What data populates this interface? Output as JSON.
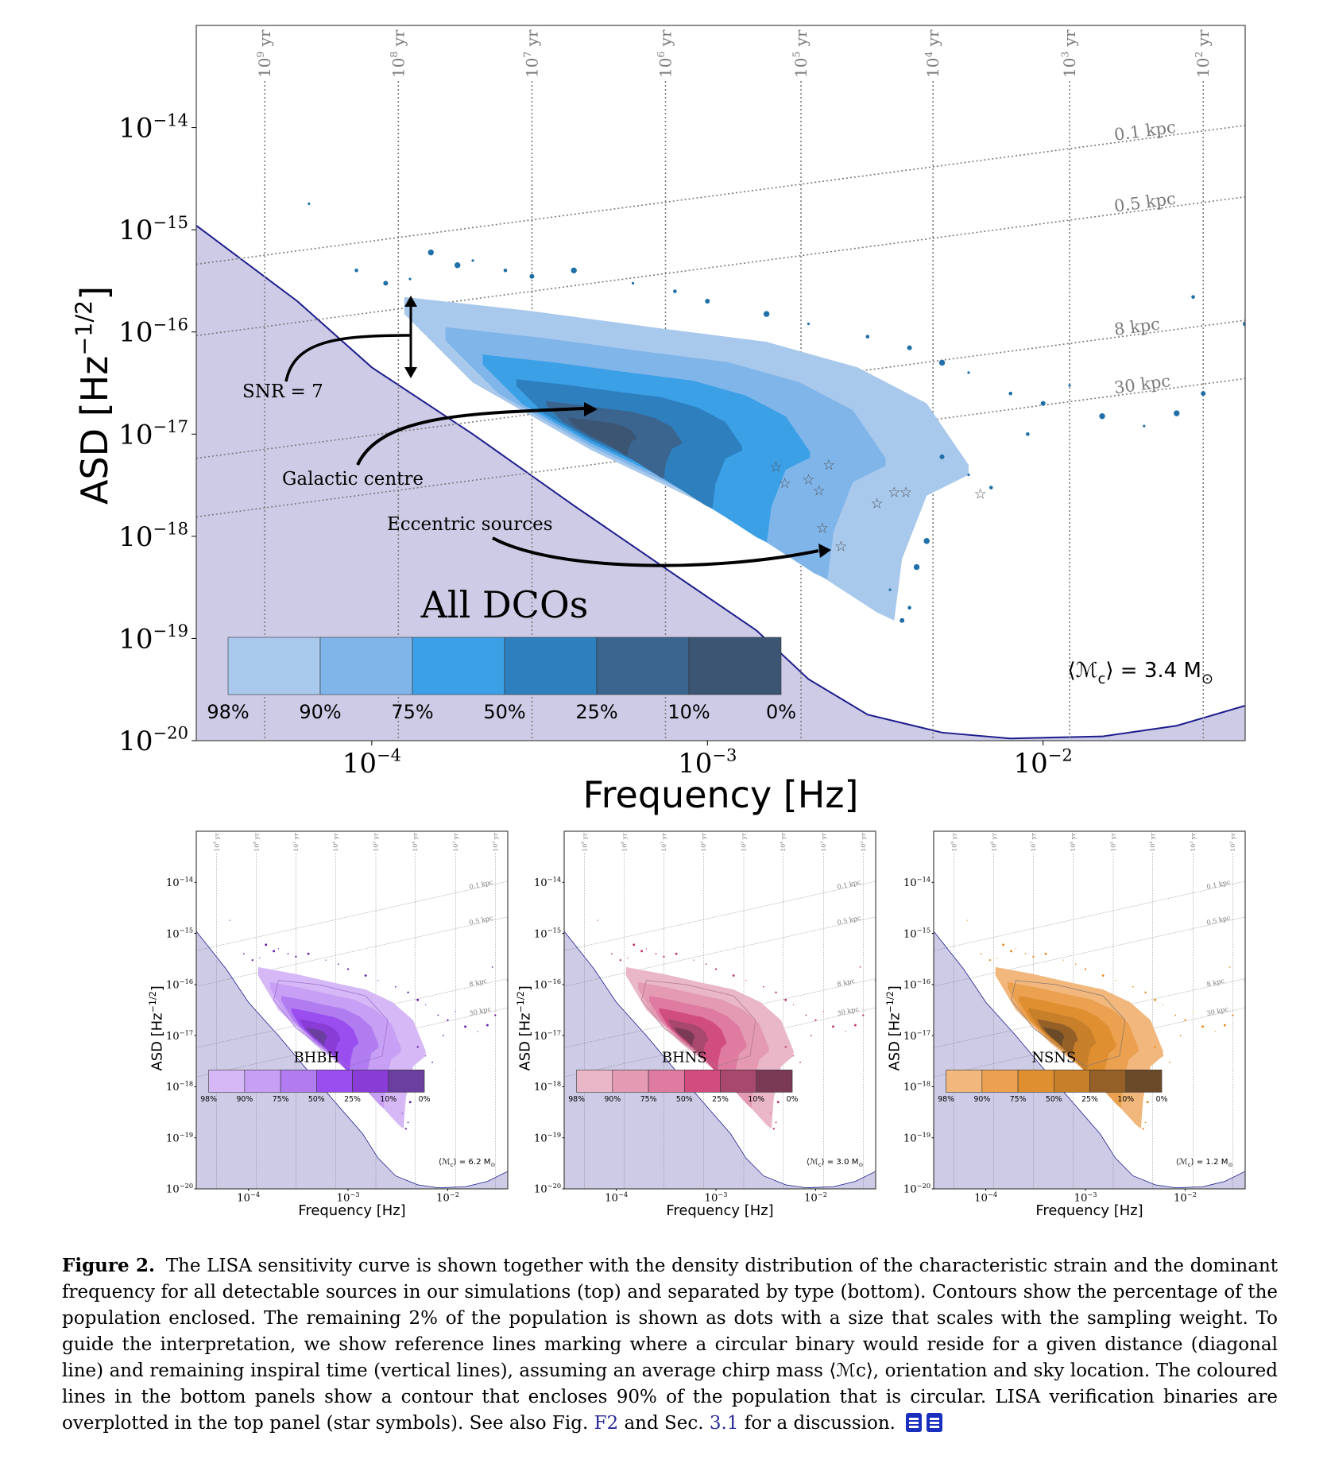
{
  "chart_data": [
    {
      "type": "scatter",
      "panel": "top",
      "title": "All DCOs",
      "xlabel": "Frequency [Hz]",
      "ylabel": "ASD [Hz⁻¹ᐟ²]",
      "ylabel_parts": {
        "base": "ASD [Hz",
        "exp": "−1/2",
        "close": "]"
      },
      "xscale": "log",
      "yscale": "log",
      "xlim": [
        3e-05,
        0.04
      ],
      "ylim": [
        1e-20,
        1e-13
      ],
      "xticks": [
        {
          "value": 0.0001,
          "exp": "−4"
        },
        {
          "value": 0.001,
          "exp": "−3"
        },
        {
          "value": 0.01,
          "exp": "−2"
        }
      ],
      "yticks": [
        {
          "value": 1e-14,
          "exp": "−14"
        },
        {
          "value": 1e-15,
          "exp": "−15"
        },
        {
          "value": 1e-16,
          "exp": "−16"
        },
        {
          "value": 1e-17,
          "exp": "−17"
        },
        {
          "value": 1e-18,
          "exp": "−18"
        },
        {
          "value": 1e-19,
          "exp": "−19"
        },
        {
          "value": 1e-20,
          "exp": "−20"
        }
      ],
      "sensitivity_curve": [
        [
          3e-05,
          1.1e-15
        ],
        [
          6e-05,
          2e-16
        ],
        [
          0.0001,
          4.5e-17
        ],
        [
          0.0002,
          1e-17
        ],
        [
          0.0004,
          2e-18
        ],
        [
          0.0008,
          4.2e-19
        ],
        [
          0.0014,
          1.2e-19
        ],
        [
          0.002,
          4e-20
        ],
        [
          0.003,
          1.8e-20
        ],
        [
          0.005,
          1.2e-20
        ],
        [
          0.008,
          1.05e-20
        ],
        [
          0.015,
          1.1e-20
        ],
        [
          0.025,
          1.4e-20
        ],
        [
          0.04,
          2.2e-20
        ]
      ],
      "lifetime_lines": [
        {
          "label_base": "10",
          "label_exp": "9",
          "label_unit": "yr",
          "x": 4.8e-05
        },
        {
          "label_base": "10",
          "label_exp": "8",
          "label_unit": "yr",
          "x": 0.00012
        },
        {
          "label_base": "10",
          "label_exp": "7",
          "label_unit": "yr",
          "x": 0.0003
        },
        {
          "label_base": "10",
          "label_exp": "6",
          "label_unit": "yr",
          "x": 0.00075
        },
        {
          "label_base": "10",
          "label_exp": "5",
          "label_unit": "yr",
          "x": 0.0019
        },
        {
          "label_base": "10",
          "label_exp": "4",
          "label_unit": "yr",
          "x": 0.0047
        },
        {
          "label_base": "10",
          "label_exp": "3",
          "label_unit": "yr",
          "x": 0.012
        },
        {
          "label_base": "10",
          "label_exp": "2",
          "label_unit": "yr",
          "x": 0.03
        }
      ],
      "distance_lines": [
        {
          "label": "0.1 kpc",
          "x0": 3e-05,
          "y0": 4.6e-16,
          "x1": 0.04,
          "y1": 1.05e-14
        },
        {
          "label": "0.5 kpc",
          "x0": 3e-05,
          "y0": 9.2e-17,
          "x1": 0.04,
          "y1": 2.1e-15
        },
        {
          "label": "8 kpc",
          "x0": 3e-05,
          "y0": 5.8e-18,
          "x1": 0.04,
          "y1": 1.3e-16
        },
        {
          "label": "30 kpc",
          "x0": 3e-05,
          "y0": 1.55e-18,
          "x1": 0.04,
          "y1": 3.5e-17
        }
      ],
      "density_levels": [
        {
          "label": "98%",
          "color": "#a8c8ec"
        },
        {
          "label": "90%",
          "color": "#80b5ea"
        },
        {
          "label": "75%",
          "color": "#3ba0e6"
        },
        {
          "label": "50%",
          "color": "#2e7fbd"
        },
        {
          "label": "25%",
          "color": "#3b648f"
        },
        {
          "label": "10%",
          "color": "#3b5573"
        },
        {
          "label": "0%",
          "color": ""
        }
      ],
      "verification_binaries": [
        [
          0.0016,
          4.8e-18
        ],
        [
          0.0017,
          3.3e-18
        ],
        [
          0.002,
          3.6e-18
        ],
        [
          0.00215,
          2.8e-18
        ],
        [
          0.0023,
          5e-18
        ],
        [
          0.0022,
          1.2e-18
        ],
        [
          0.0025,
          8e-19
        ],
        [
          0.0032,
          2.1e-18
        ],
        [
          0.0036,
          2.7e-18
        ],
        [
          0.0039,
          2.7e-18
        ],
        [
          0.0065,
          2.6e-18
        ]
      ],
      "sample_points": [
        [
          6.5e-05,
          1.8e-15
        ],
        [
          9e-05,
          4e-16
        ],
        [
          0.00011,
          3e-16
        ],
        [
          0.00015,
          6e-16
        ],
        [
          0.0002,
          5e-16
        ],
        [
          0.00025,
          4e-16
        ],
        [
          0.0003,
          3.5e-16
        ],
        [
          0.0004,
          4e-16
        ],
        [
          0.0006,
          3e-16
        ],
        [
          0.0008,
          2.5e-16
        ],
        [
          0.001,
          2e-16
        ],
        [
          0.0015,
          1.5e-16
        ],
        [
          0.002,
          1.2e-16
        ],
        [
          0.003,
          9e-17
        ],
        [
          0.004,
          7e-17
        ],
        [
          0.005,
          5e-17
        ],
        [
          0.006,
          4e-17
        ],
        [
          0.008,
          2.5e-17
        ],
        [
          0.01,
          2e-17
        ],
        [
          0.015,
          1.5e-17
        ],
        [
          0.02,
          1.2e-17
        ],
        [
          0.028,
          2.2e-16
        ],
        [
          0.04,
          1.2e-16
        ],
        [
          0.025,
          1.6e-17
        ],
        [
          0.006,
          4e-18
        ],
        [
          0.007,
          3e-18
        ],
        [
          0.005,
          6e-18
        ],
        [
          0.0042,
          5e-19
        ],
        [
          0.0035,
          3e-19
        ],
        [
          0.004,
          2e-19
        ],
        [
          0.0038,
          1.5e-19
        ],
        [
          0.0045,
          9e-19
        ],
        [
          0.012,
          3e-17
        ],
        [
          0.009,
          1e-17
        ],
        [
          0.03,
          2.5e-17
        ],
        [
          0.00018,
          4.5e-16
        ],
        [
          0.00013,
          3.3e-16
        ]
      ],
      "annotations": [
        {
          "text": "SNR = 7"
        },
        {
          "text": "Galactic centre"
        },
        {
          "text": "Eccentric sources"
        }
      ],
      "mean_chirp_mass": {
        "prefix": "⟨",
        "symbol": "ℳ",
        "sub": "c",
        "suffix": "⟩ = 3.4 M",
        "sun": "⊙"
      },
      "grid": false,
      "legend": "bottom-left colorbar"
    },
    {
      "type": "scatter",
      "panel": "bottom-left",
      "title": "BHBH",
      "xlabel": "Frequency [Hz]",
      "ylabel": "ASD [Hz⁻¹ᐟ²]",
      "ylabel_parts": {
        "base": "ASD [Hz",
        "exp": "−1/2",
        "close": "]"
      },
      "xscale": "log",
      "yscale": "log",
      "xlim": [
        3e-05,
        0.04
      ],
      "ylim": [
        1e-20,
        1e-13
      ],
      "mean_chirp_mass": {
        "prefix": "⟨",
        "symbol": "ℳ",
        "sub": "c",
        "suffix": "⟩ = 6.2 M",
        "sun": "⊙"
      },
      "density_levels": [
        {
          "label": "98%",
          "color": "#d5b8f5"
        },
        {
          "label": "90%",
          "color": "#c79ff5"
        },
        {
          "label": "75%",
          "color": "#b07cf0"
        },
        {
          "label": "50%",
          "color": "#9a4ef0"
        },
        {
          "label": "25%",
          "color": "#8a3dd6"
        },
        {
          "label": "10%",
          "color": "#6b3fa0"
        },
        {
          "label": "0%",
          "color": ""
        }
      ],
      "point_color": "#6a1fb0",
      "circular_contour_color": "#a070d0"
    },
    {
      "type": "scatter",
      "panel": "bottom-middle",
      "title": "BHNS",
      "xlabel": "Frequency [Hz]",
      "ylabel": "ASD [Hz⁻¹ᐟ²]",
      "ylabel_parts": {
        "base": "ASD [Hz",
        "exp": "−1/2",
        "close": "]"
      },
      "xscale": "log",
      "yscale": "log",
      "xlim": [
        3e-05,
        0.04
      ],
      "ylim": [
        1e-20,
        1e-13
      ],
      "mean_chirp_mass": {
        "prefix": "⟨",
        "symbol": "ℳ",
        "sub": "c",
        "suffix": "⟩ = 3.0 M",
        "sun": "⊙"
      },
      "density_levels": [
        {
          "label": "98%",
          "color": "#eab7c8"
        },
        {
          "label": "90%",
          "color": "#e39ab2"
        },
        {
          "label": "75%",
          "color": "#df7aa0"
        },
        {
          "label": "50%",
          "color": "#d14d80"
        },
        {
          "label": "25%",
          "color": "#a8486c"
        },
        {
          "label": "10%",
          "color": "#7a3a55"
        },
        {
          "label": "0%",
          "color": ""
        }
      ],
      "point_color": "#c0356b",
      "circular_contour_color": "#b07a8a"
    },
    {
      "type": "scatter",
      "panel": "bottom-right",
      "title": "NSNS",
      "xlabel": "Frequency [Hz]",
      "ylabel": "ASD [Hz⁻¹ᐟ²]",
      "ylabel_parts": {
        "base": "ASD [Hz",
        "exp": "−1/2",
        "close": "]"
      },
      "xscale": "log",
      "yscale": "log",
      "xlim": [
        3e-05,
        0.04
      ],
      "ylim": [
        1e-20,
        1e-13
      ],
      "mean_chirp_mass": {
        "prefix": "⟨",
        "symbol": "ℳ",
        "sub": "c",
        "suffix": "⟩ = 1.2 M",
        "sun": "⊙"
      },
      "density_levels": [
        {
          "label": "98%",
          "color": "#f1b77c"
        },
        {
          "label": "90%",
          "color": "#eba14f"
        },
        {
          "label": "75%",
          "color": "#df8f30"
        },
        {
          "label": "50%",
          "color": "#c77f2a"
        },
        {
          "label": "25%",
          "color": "#946028"
        },
        {
          "label": "10%",
          "color": "#6b4a2a"
        },
        {
          "label": "0%",
          "color": ""
        }
      ],
      "point_color": "#e88a20",
      "circular_contour_color": "#8a7a70"
    }
  ],
  "styles": {
    "sensitivity_fill": "#cdcbe6",
    "sensitivity_line": "#1c1c8c",
    "point_color": "#1f6fa8",
    "reference_line": "#7a7a7a",
    "arrow": "#000000"
  },
  "caption": {
    "label": "Figure 2.",
    "text_before_f2": "The LISA sensitivity curve is shown together with the density distribution of the characteristic strain and the dominant frequency for all detectable sources in our simulations (top) and separated by type (bottom). Contours show the percentage of the population enclosed. The remaining 2% of the population is shown as dots with a size that scales with the sampling weight. To guide the interpretation, we show reference lines marking where a circular binary would reside for a given distance (diagonal line) and remaining inspiral time (vertical lines), assuming an average chirp mass ⟨ℳc⟩, orientation and sky location. The coloured lines in the bottom panels show a contour that encloses 90% of the population that is circular. LISA verification binaries are overplotted in the top panel (star symbols). See also Fig. ",
    "ref_fig": "F2",
    "text_mid": " and Sec. ",
    "ref_sec": "3.1",
    "text_after": " for a discussion.",
    "icon_names": [
      "document-icon",
      "notes-icon"
    ]
  }
}
